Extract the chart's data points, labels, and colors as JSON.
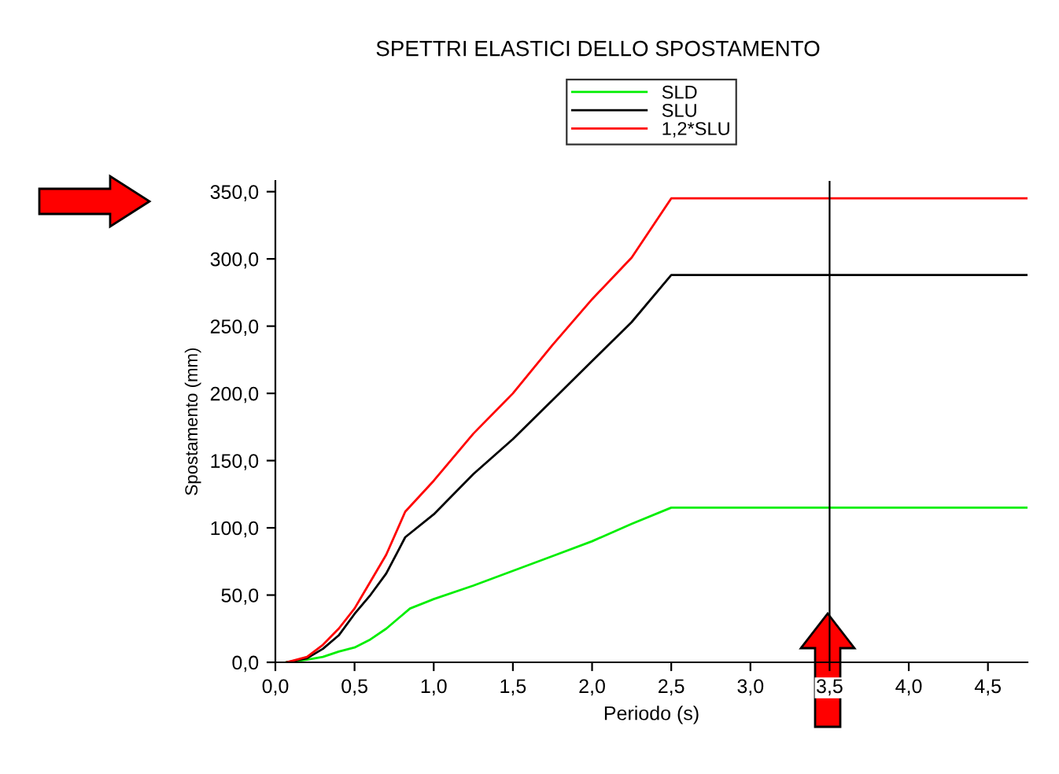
{
  "chart_data": {
    "type": "line",
    "title": "SPETTRI ELASTICI DELLO SPOSTAMENTO",
    "xlabel": "Periodo (s)",
    "ylabel": "Spostamento (mm)",
    "xlim": [
      0,
      4.75
    ],
    "ylim": [
      0,
      358
    ],
    "xticks": [
      {
        "value": 0,
        "label": "0,0"
      },
      {
        "value": 0.5,
        "label": "0,5"
      },
      {
        "value": 1,
        "label": "1,0"
      },
      {
        "value": 1.5,
        "label": "1,5"
      },
      {
        "value": 2,
        "label": "2,0"
      },
      {
        "value": 2.5,
        "label": "2,5"
      },
      {
        "value": 3,
        "label": "3,0"
      },
      {
        "value": 3.5,
        "label": "3,5"
      },
      {
        "value": 4,
        "label": "4,0"
      },
      {
        "value": 4.5,
        "label": "4,5"
      }
    ],
    "yticks": [
      {
        "value": 0,
        "label": "0,0"
      },
      {
        "value": 50,
        "label": "50,0"
      },
      {
        "value": 100,
        "label": "100,0"
      },
      {
        "value": 150,
        "label": "150,0"
      },
      {
        "value": 200,
        "label": "200,0"
      },
      {
        "value": 250,
        "label": "250,0"
      },
      {
        "value": 300,
        "label": "300,0"
      },
      {
        "value": 350,
        "label": "350,0"
      }
    ],
    "series": [
      {
        "name": "SLD",
        "color": "#00ee00",
        "x": [
          0.07,
          0.2,
          0.3,
          0.4,
          0.5,
          0.6,
          0.7,
          0.85,
          1.0,
          1.25,
          1.5,
          1.75,
          2.0,
          2.25,
          2.5,
          4.75
        ],
        "values": [
          0,
          2,
          4,
          8,
          11,
          17,
          25,
          40,
          47,
          57,
          68,
          79,
          90,
          103,
          115,
          115
        ]
      },
      {
        "name": "SLU",
        "color": "#000000",
        "x": [
          0.07,
          0.2,
          0.3,
          0.4,
          0.5,
          0.6,
          0.7,
          0.82,
          1.0,
          1.25,
          1.5,
          1.75,
          2.0,
          2.25,
          2.5,
          4.75
        ],
        "values": [
          0,
          3,
          10,
          20,
          36,
          50,
          66,
          93,
          110,
          140,
          166,
          195,
          224,
          253,
          288,
          288
        ]
      },
      {
        "name": "1,2*SLU",
        "color": "#ff0000",
        "x": [
          0.07,
          0.2,
          0.3,
          0.4,
          0.5,
          0.6,
          0.7,
          0.82,
          1.0,
          1.25,
          1.5,
          1.75,
          2.0,
          2.25,
          2.5,
          4.75
        ],
        "values": [
          0,
          4,
          13,
          25,
          40,
          60,
          80,
          112,
          135,
          170,
          200,
          236,
          270,
          301,
          345,
          345
        ]
      }
    ],
    "ref_lines": [
      {
        "axis": "x",
        "value": 3.5,
        "color": "#000000"
      }
    ],
    "legend": "top",
    "grid": false,
    "marker": "none",
    "line_style": "solid"
  }
}
